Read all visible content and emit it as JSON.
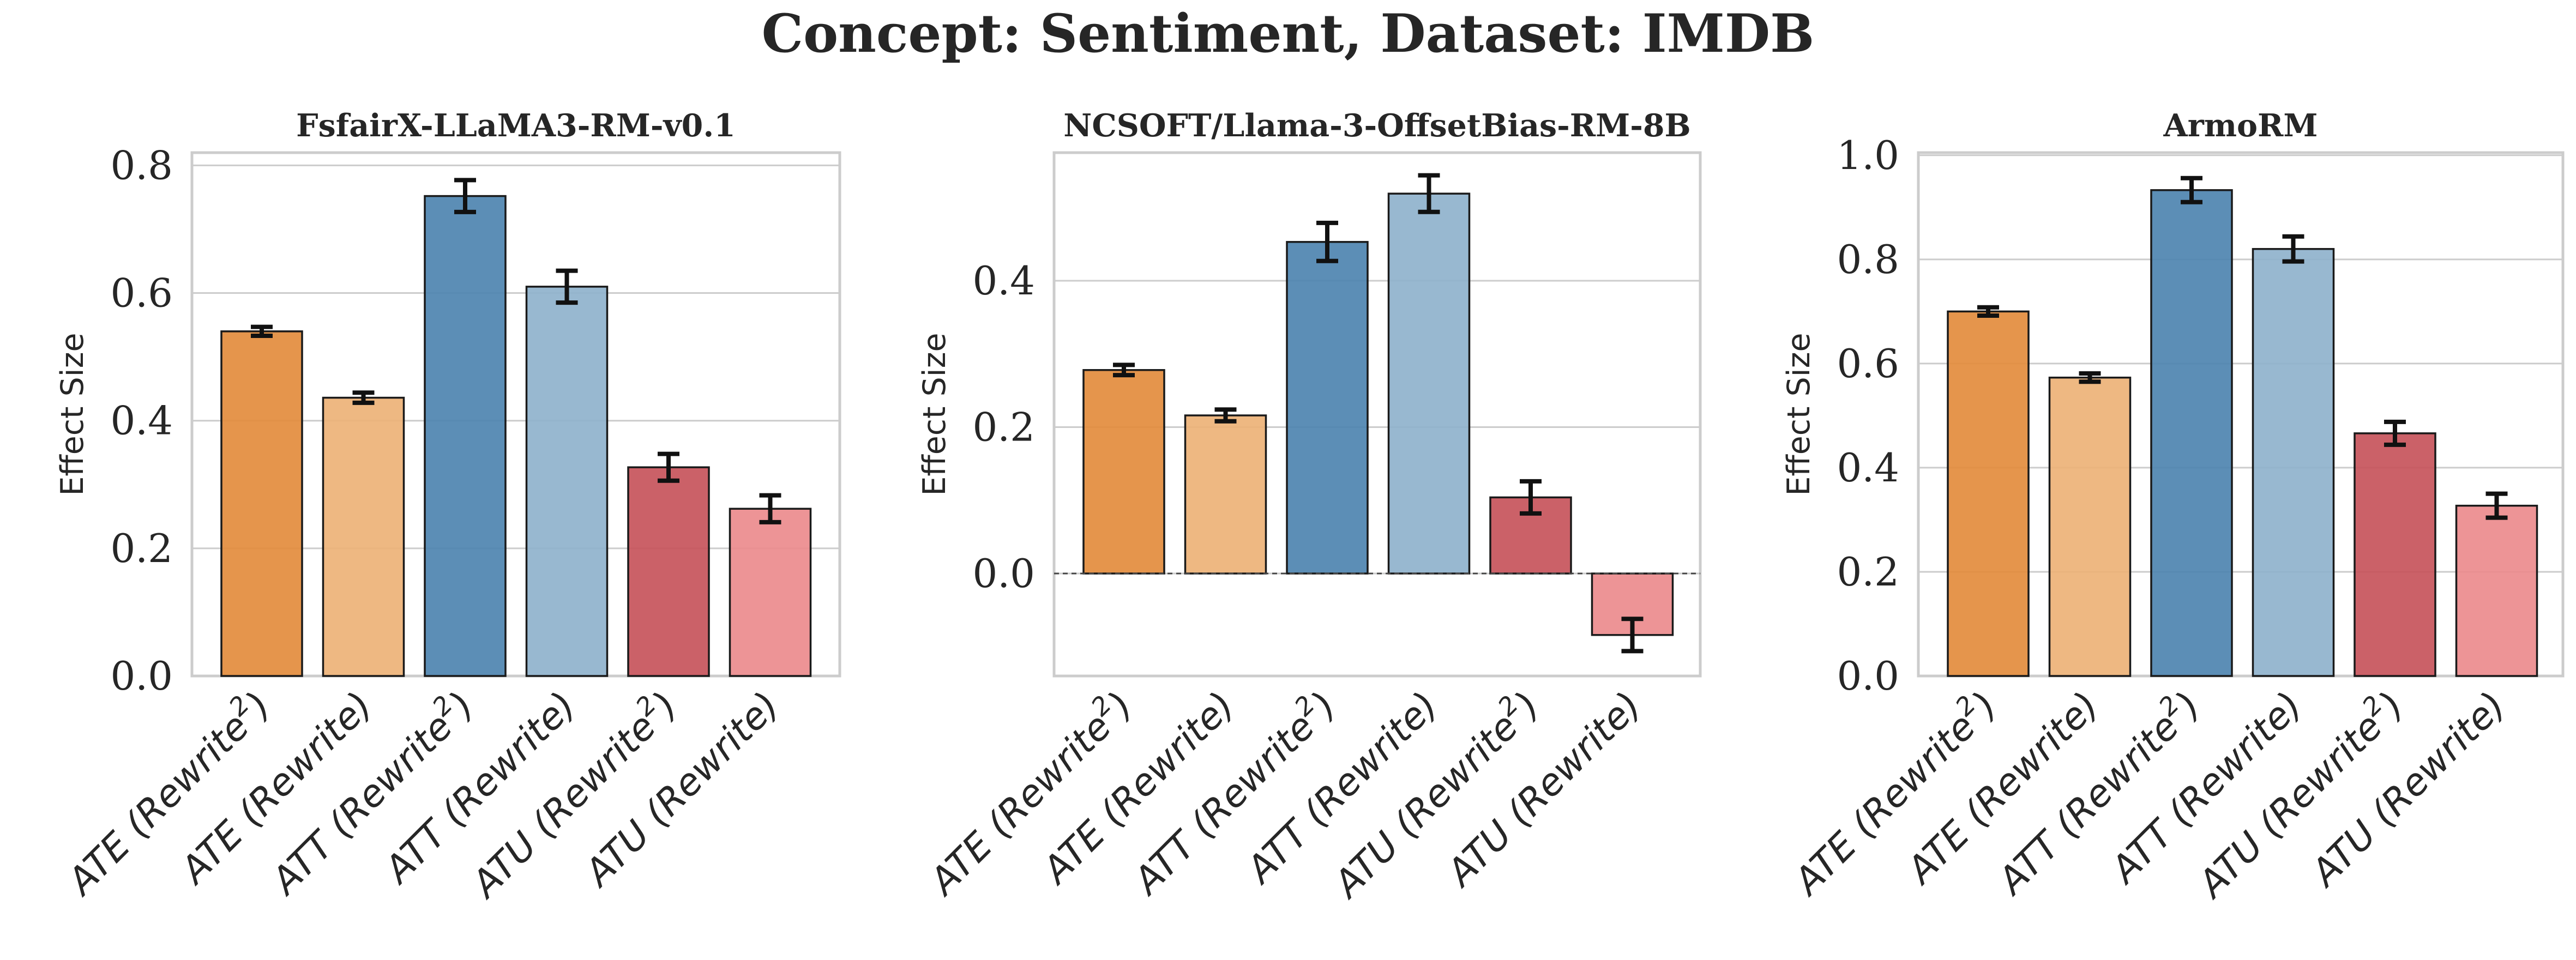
{
  "suptitle": "Concept: Sentiment, Dataset: IMDB",
  "colors": {
    "ATE (Rewrite2)": "#e38c3d",
    "ATE (Rewrite)": "#edb277",
    "ATT (Rewrite2)": "#4e84b0",
    "ATT (Rewrite)": "#8fb2cc",
    "ATU (Rewrite2)": "#c7545b",
    "ATU (Rewrite)": "#ec8b8d"
  },
  "chart_data": [
    {
      "type": "bar",
      "title": "FsfairX-LLaMA3-RM-v0.1",
      "ylabel": "Effect Size",
      "ylim": [
        0,
        0.82
      ],
      "yticks": [
        "0.0",
        "0.2",
        "0.4",
        "0.6",
        "0.8"
      ],
      "grid": true,
      "categories": [
        {
          "base": "ATE (Rewrite",
          "sup": "2",
          "end": ")"
        },
        {
          "base": "ATE (Rewrite)",
          "sup": "",
          "end": ""
        },
        {
          "base": "ATT (Rewrite",
          "sup": "2",
          "end": ")"
        },
        {
          "base": "ATT (Rewrite)",
          "sup": "",
          "end": ""
        },
        {
          "base": "ATU (Rewrite",
          "sup": "2",
          "end": ")"
        },
        {
          "base": "ATU (Rewrite)",
          "sup": "",
          "end": ""
        }
      ],
      "values": [
        0.54,
        0.436,
        0.752,
        0.61,
        0.327,
        0.262
      ],
      "errors": [
        0.007,
        0.008,
        0.025,
        0.025,
        0.021,
        0.021
      ]
    },
    {
      "type": "bar",
      "title": "NCSOFT/Llama-3-OffsetBias-RM-8B",
      "ylabel": "Effect Size",
      "ylim": [
        -0.14,
        0.575
      ],
      "yticks": [
        "0.0",
        "0.2",
        "0.4"
      ],
      "grid": true,
      "zero_line": true,
      "categories": [
        {
          "base": "ATE (Rewrite",
          "sup": "2",
          "end": ")"
        },
        {
          "base": "ATE (Rewrite)",
          "sup": "",
          "end": ""
        },
        {
          "base": "ATT (Rewrite",
          "sup": "2",
          "end": ")"
        },
        {
          "base": "ATT (Rewrite)",
          "sup": "",
          "end": ""
        },
        {
          "base": "ATU (Rewrite",
          "sup": "2",
          "end": ")"
        },
        {
          "base": "ATU (Rewrite)",
          "sup": "",
          "end": ""
        }
      ],
      "values": [
        0.278,
        0.216,
        0.453,
        0.519,
        0.104,
        -0.084
      ],
      "errors": [
        0.007,
        0.008,
        0.026,
        0.025,
        0.022,
        0.022
      ]
    },
    {
      "type": "bar",
      "title": "ArmoRM",
      "ylabel": "Effect Size",
      "ylim": [
        0,
        1.005
      ],
      "yticks": [
        "0.0",
        "0.2",
        "0.4",
        "0.6",
        "0.8",
        "1.0"
      ],
      "grid": true,
      "categories": [
        {
          "base": "ATE (Rewrite",
          "sup": "2",
          "end": ")"
        },
        {
          "base": "ATE (Rewrite)",
          "sup": "",
          "end": ""
        },
        {
          "base": "ATT (Rewrite",
          "sup": "2",
          "end": ")"
        },
        {
          "base": "ATT (Rewrite)",
          "sup": "",
          "end": ""
        },
        {
          "base": "ATU (Rewrite",
          "sup": "2",
          "end": ")"
        },
        {
          "base": "ATU (Rewrite)",
          "sup": "",
          "end": ""
        }
      ],
      "values": [
        0.7,
        0.573,
        0.933,
        0.82,
        0.466,
        0.327
      ],
      "errors": [
        0.008,
        0.008,
        0.023,
        0.024,
        0.022,
        0.023
      ]
    }
  ]
}
